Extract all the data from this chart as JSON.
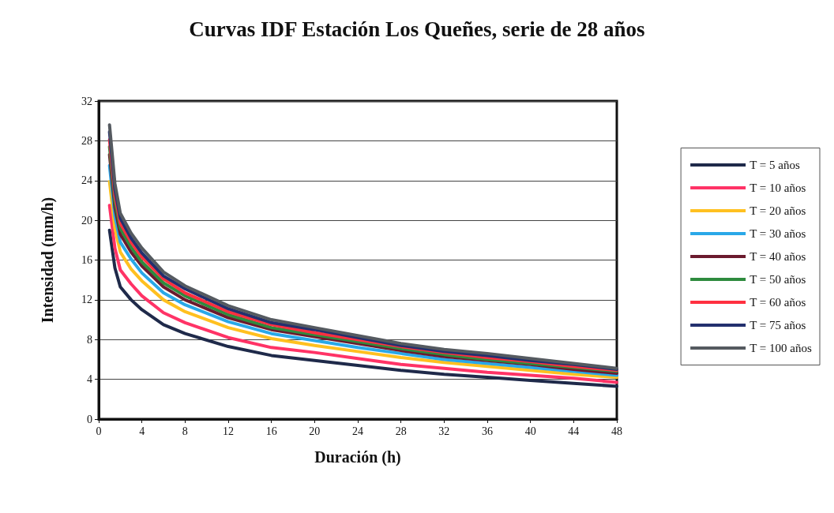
{
  "chart_data": {
    "type": "line",
    "title": "Curvas IDF Estación Los Queñes, serie de 28 años",
    "xlabel": "Duración (h)",
    "ylabel": "Intensidad (mm/h)",
    "x": [
      1,
      1.5,
      2,
      3,
      4,
      6,
      8,
      12,
      16,
      20,
      24,
      28,
      32,
      36,
      40,
      44,
      48
    ],
    "xlim": [
      0,
      48
    ],
    "xticks": [
      0,
      4,
      8,
      12,
      16,
      20,
      24,
      28,
      32,
      36,
      40,
      44,
      48
    ],
    "ylim": [
      0,
      32
    ],
    "yticks": [
      0,
      4,
      8,
      12,
      16,
      20,
      24,
      28,
      32
    ],
    "grid": "y",
    "legend": "right",
    "marker": "none",
    "line_style": "solid",
    "series": [
      {
        "name": "T = 5 años",
        "color": "#1f2a4a",
        "values": [
          19.0,
          15.2,
          13.3,
          12.0,
          11.0,
          9.5,
          8.6,
          7.3,
          6.4,
          5.9,
          5.4,
          4.9,
          4.5,
          4.2,
          3.9,
          3.6,
          3.3
        ]
      },
      {
        "name": "T = 10 años",
        "color": "#ff3366",
        "values": [
          21.5,
          17.2,
          15.0,
          13.6,
          12.4,
          10.7,
          9.7,
          8.2,
          7.2,
          6.7,
          6.1,
          5.5,
          5.1,
          4.7,
          4.4,
          4.1,
          3.7
        ]
      },
      {
        "name": "T = 20 años",
        "color": "#ffc020",
        "values": [
          23.9,
          19.2,
          16.8,
          15.1,
          13.9,
          12.0,
          10.8,
          9.2,
          8.1,
          7.4,
          6.8,
          6.2,
          5.7,
          5.3,
          4.9,
          4.5,
          4.2
        ]
      },
      {
        "name": "T = 30 años",
        "color": "#29a8e8",
        "values": [
          25.5,
          20.4,
          17.8,
          16.1,
          14.7,
          12.7,
          11.5,
          9.8,
          8.6,
          7.9,
          7.2,
          6.6,
          6.0,
          5.6,
          5.2,
          4.8,
          4.4
        ]
      },
      {
        "name": "T = 40 años",
        "color": "#6b1a2e",
        "values": [
          26.6,
          21.3,
          18.6,
          16.8,
          15.4,
          13.3,
          12.0,
          10.2,
          9.0,
          8.3,
          7.6,
          6.9,
          6.3,
          5.9,
          5.5,
          5.0,
          4.6
        ]
      },
      {
        "name": "T = 50 años",
        "color": "#2e8b3e",
        "values": [
          27.4,
          21.9,
          19.2,
          17.3,
          15.8,
          13.7,
          12.4,
          10.5,
          9.2,
          8.5,
          7.8,
          7.1,
          6.5,
          6.0,
          5.6,
          5.2,
          4.8
        ]
      },
      {
        "name": "T = 60 años",
        "color": "#ff3040",
        "values": [
          28.1,
          22.5,
          19.7,
          17.8,
          16.3,
          14.1,
          12.7,
          10.8,
          9.5,
          8.7,
          8.0,
          7.3,
          6.7,
          6.2,
          5.8,
          5.3,
          4.9
        ]
      },
      {
        "name": "T = 75 años",
        "color": "#23306e",
        "values": [
          28.9,
          23.1,
          20.2,
          18.2,
          16.7,
          14.4,
          13.1,
          11.1,
          9.7,
          9.0,
          8.2,
          7.4,
          6.8,
          6.4,
          5.9,
          5.5,
          5.0
        ]
      },
      {
        "name": "T = 100 años",
        "color": "#555a60",
        "values": [
          29.6,
          23.7,
          20.7,
          18.7,
          17.2,
          14.8,
          13.4,
          11.4,
          10.0,
          9.2,
          8.4,
          7.6,
          7.0,
          6.6,
          6.1,
          5.6,
          5.1
        ]
      }
    ]
  }
}
